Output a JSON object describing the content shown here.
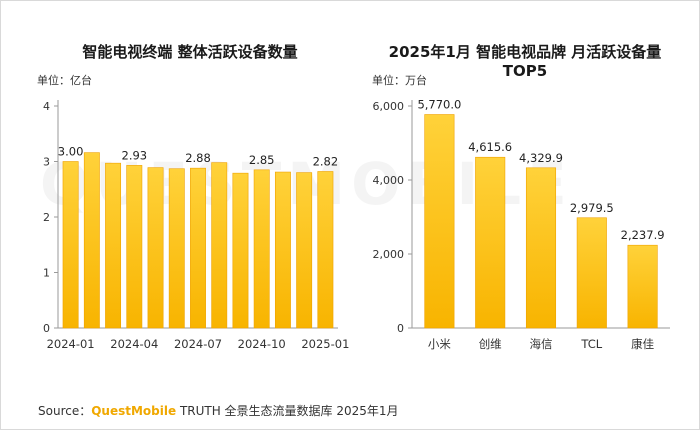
{
  "left_chart": {
    "title": "智能电视终端 整体活跃设备数量",
    "unit": "单位：亿台"
  },
  "right_chart": {
    "title_line1": "2025年1月 智能电视品牌 月活跃设备量",
    "title_line2": "TOP5",
    "unit": "单位：万台"
  },
  "source": {
    "prefix": "Source：",
    "brand": "QuestMobile",
    "suffix": " TRUTH 全景生态流量数据库 2025年1月"
  },
  "watermark": "QUESTMOBILE",
  "colors": {
    "bar_top": "#FFD23A",
    "bar_bottom": "#F8B400",
    "bar_edge": "#EFA200"
  },
  "chart_data": [
    {
      "type": "bar",
      "title": "智能电视终端 整体活跃设备数量",
      "ylabel": "单位：亿台",
      "categories": [
        "2024-01",
        "2024-02",
        "2024-03",
        "2024-04",
        "2024-05",
        "2024-06",
        "2024-07",
        "2024-08",
        "2024-09",
        "2024-10",
        "2024-11",
        "2024-12",
        "2025-01"
      ],
      "tick_labels": [
        "2024-01",
        "2024-04",
        "2024-07",
        "2024-10",
        "2025-01"
      ],
      "values": [
        3.0,
        3.16,
        2.97,
        2.93,
        2.89,
        2.87,
        2.88,
        2.98,
        2.79,
        2.85,
        2.81,
        2.8,
        2.82
      ],
      "data_labels": [
        "3.00",
        "",
        "",
        "2.93",
        "",
        "",
        "2.88",
        "",
        "",
        "2.85",
        "",
        "",
        "2.82"
      ],
      "yticks": [
        "0",
        "1",
        "2",
        "3",
        "4"
      ],
      "ylim": [
        0,
        4
      ],
      "grid": false
    },
    {
      "type": "bar",
      "title": "2025年1月 智能电视品牌 月活跃设备量 TOP5",
      "ylabel": "单位：万台",
      "categories": [
        "小米",
        "创维",
        "海信",
        "TCL",
        "康佳"
      ],
      "values": [
        5770.0,
        4615.6,
        4329.9,
        2979.5,
        2237.9
      ],
      "data_labels": [
        "5,770.0",
        "4,615.6",
        "4,329.9",
        "2,979.5",
        "2,237.9"
      ],
      "yticks": [
        "0",
        "2,000",
        "4,000",
        "6,000"
      ],
      "ylim": [
        0,
        6000
      ],
      "grid": false
    }
  ]
}
